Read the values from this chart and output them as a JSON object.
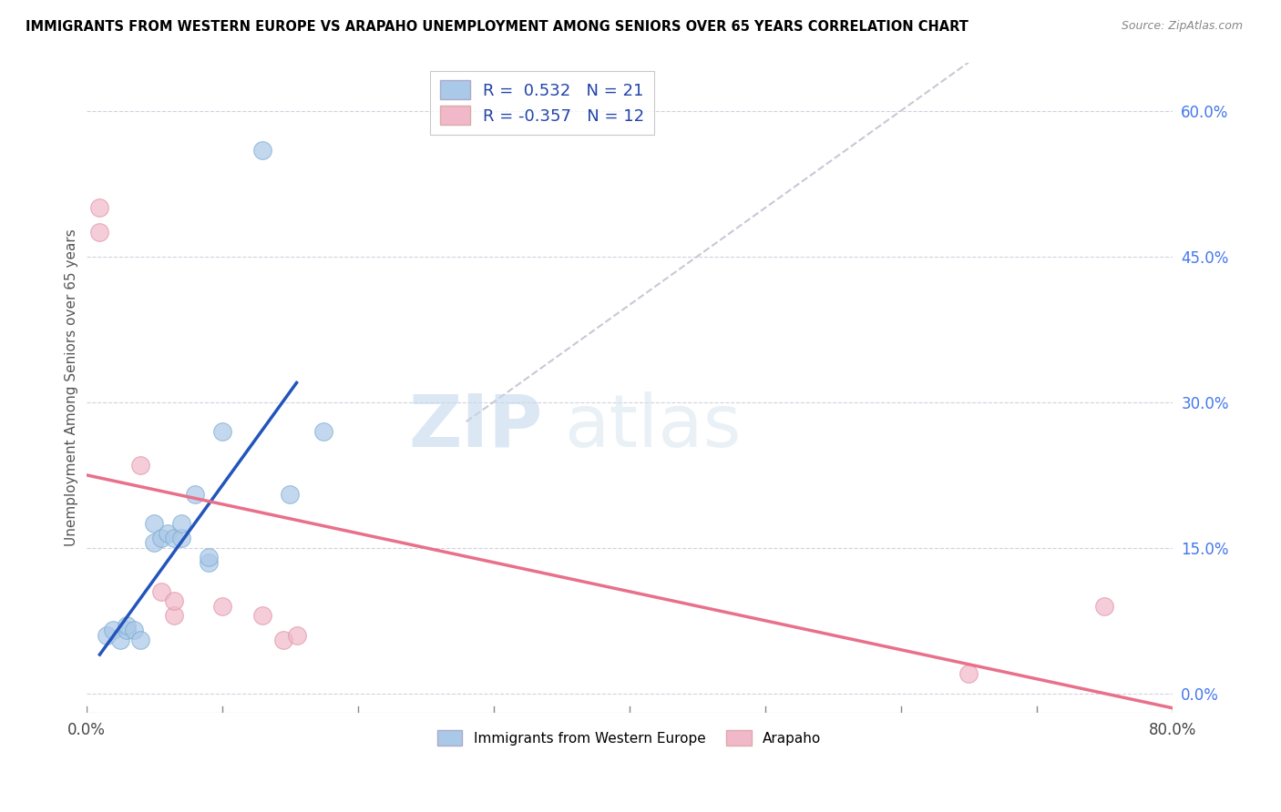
{
  "title": "IMMIGRANTS FROM WESTERN EUROPE VS ARAPAHO UNEMPLOYMENT AMONG SENIORS OVER 65 YEARS CORRELATION CHART",
  "source": "Source: ZipAtlas.com",
  "ylabel": "Unemployment Among Seniors over 65 years",
  "xlim": [
    0.0,
    0.8
  ],
  "ylim": [
    -0.02,
    0.65
  ],
  "xtick_positions": [
    0.0,
    0.8
  ],
  "xticklabels": [
    "0.0%",
    "80.0%"
  ],
  "yticks_right": [
    0.0,
    0.15,
    0.3,
    0.45,
    0.6
  ],
  "yticklabels_right": [
    "0.0%",
    "15.0%",
    "30.0%",
    "45.0%",
    "60.0%"
  ],
  "blue_R": 0.532,
  "blue_N": 21,
  "pink_R": -0.357,
  "pink_N": 12,
  "blue_color": "#aac8e8",
  "blue_edge_color": "#7aaad0",
  "blue_line_color": "#2255bb",
  "pink_color": "#f0b8c8",
  "pink_edge_color": "#e090a8",
  "pink_line_color": "#e8708a",
  "legend_label_blue": "Immigrants from Western Europe",
  "legend_label_pink": "Arapaho",
  "watermark_zip": "ZIP",
  "watermark_atlas": "atlas",
  "blue_points_x": [
    0.015,
    0.02,
    0.025,
    0.03,
    0.03,
    0.035,
    0.04,
    0.05,
    0.05,
    0.055,
    0.06,
    0.065,
    0.07,
    0.07,
    0.08,
    0.09,
    0.09,
    0.1,
    0.13,
    0.15,
    0.175
  ],
  "blue_points_y": [
    0.06,
    0.065,
    0.055,
    0.065,
    0.07,
    0.065,
    0.055,
    0.155,
    0.175,
    0.16,
    0.165,
    0.16,
    0.16,
    0.175,
    0.205,
    0.135,
    0.14,
    0.27,
    0.56,
    0.205,
    0.27
  ],
  "pink_points_x": [
    0.01,
    0.01,
    0.04,
    0.055,
    0.065,
    0.065,
    0.1,
    0.13,
    0.145,
    0.155,
    0.65,
    0.75
  ],
  "pink_points_y": [
    0.475,
    0.5,
    0.235,
    0.105,
    0.08,
    0.095,
    0.09,
    0.08,
    0.055,
    0.06,
    0.02,
    0.09
  ],
  "blue_scatter_size": 200,
  "pink_scatter_size": 200,
  "blue_trend_x": [
    0.01,
    0.155
  ],
  "blue_trend_y": [
    0.04,
    0.32
  ],
  "pink_trend_x": [
    0.0,
    0.8
  ],
  "pink_trend_y": [
    0.225,
    -0.015
  ],
  "diag_line_x": [
    0.28,
    0.65
  ],
  "diag_line_y": [
    0.28,
    0.65
  ]
}
